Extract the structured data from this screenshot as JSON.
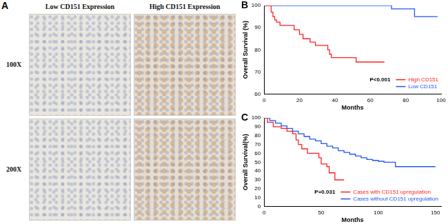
{
  "panel_a": {
    "label": "A",
    "columns": [
      "Low CD151 Expression",
      "High CD151 Expression"
    ],
    "rows": [
      "100X",
      "200X"
    ]
  },
  "chart_data": [
    {
      "type": "line",
      "label": "B",
      "line_style": "step",
      "x_label": "Months",
      "y_label": "Overall Survival (%)",
      "xlim": [
        0,
        100
      ],
      "xticks": [
        0,
        20,
        40,
        60,
        80,
        100
      ],
      "ylim": [
        60,
        100
      ],
      "yticks": [
        60,
        70,
        80,
        90,
        100
      ],
      "grid": false,
      "legend": "lower right",
      "annotations": [
        "P<0.001"
      ],
      "series": [
        {
          "name": "High CD151",
          "color": "#ff2020",
          "x": [
            0,
            4,
            5,
            6,
            7,
            9,
            17,
            20,
            22,
            26,
            29,
            36,
            37,
            38,
            52,
            68
          ],
          "values": [
            100,
            97,
            95,
            93.5,
            92.5,
            91,
            89,
            87,
            85,
            83.5,
            82,
            80,
            78,
            76.5,
            74.5,
            74.5
          ]
        },
        {
          "name": "Low CD151",
          "color": "#2255ee",
          "x": [
            0,
            72,
            85,
            98
          ],
          "values": [
            100,
            98.5,
            95,
            95
          ]
        }
      ]
    },
    {
      "type": "line",
      "label": "C",
      "line_style": "step",
      "x_label": "Months",
      "y_label": "Overall Survival(%)",
      "xlim": [
        0,
        155
      ],
      "xticks": [
        0,
        50,
        100,
        150
      ],
      "ylim": [
        0,
        100
      ],
      "yticks": [
        0,
        10,
        20,
        30,
        40,
        50,
        60,
        70,
        80,
        90,
        100
      ],
      "grid": false,
      "legend": "lower right",
      "annotations": [
        "P=0.031"
      ],
      "series": [
        {
          "name": "Cases with CD151 upregulation",
          "color": "#ff2020",
          "x": [
            0,
            3,
            8,
            15,
            20,
            25,
            28,
            30,
            33,
            38,
            48,
            50,
            55,
            57,
            62,
            70
          ],
          "values": [
            100,
            95,
            90,
            88,
            85,
            82,
            75,
            70,
            65,
            60,
            55,
            48,
            45,
            38,
            30,
            30
          ]
        },
        {
          "name": "Cases without CD151 upregulation",
          "color": "#2255ee",
          "x": [
            0,
            5,
            10,
            15,
            20,
            25,
            30,
            35,
            40,
            45,
            50,
            55,
            60,
            65,
            70,
            75,
            80,
            85,
            90,
            95,
            100,
            105,
            110,
            115,
            150
          ],
          "values": [
            100,
            97,
            94,
            91,
            88,
            85,
            82,
            79,
            76,
            74,
            71,
            68,
            66,
            63,
            61,
            59,
            57,
            55,
            53,
            52,
            51,
            50,
            50,
            45,
            45
          ]
        }
      ]
    }
  ]
}
